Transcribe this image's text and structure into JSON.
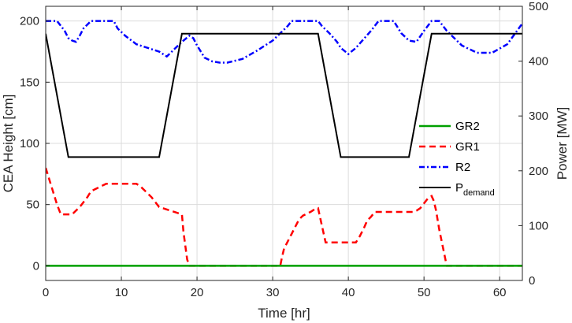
{
  "chart_data": {
    "type": "line",
    "title": "",
    "xlabel": "Time [hr]",
    "ylabel_left": "CEA Height [cm]",
    "ylabel_right": "Power [MW]",
    "xlim": [
      0,
      63
    ],
    "ylim_left": [
      -12,
      212
    ],
    "ylim_right": [
      0,
      500
    ],
    "xticks": [
      0,
      10,
      20,
      30,
      40,
      50,
      60
    ],
    "yticks_left": [
      0,
      50,
      100,
      150,
      200
    ],
    "yticks_right": [
      0,
      100,
      200,
      300,
      400,
      500
    ],
    "grid": true,
    "legend_position": "right",
    "legend": [
      {
        "series": "GR2",
        "label": "GR2",
        "sub": ""
      },
      {
        "series": "GR1",
        "label": "GR1",
        "sub": ""
      },
      {
        "series": "R2",
        "label": "R2",
        "sub": ""
      },
      {
        "series": "P",
        "label": "P",
        "sub": "demand"
      }
    ],
    "series": [
      {
        "name": "GR2",
        "axis": "left",
        "color": "#00a000",
        "style": "solid",
        "x": [
          0,
          63
        ],
        "y": [
          0,
          0
        ]
      },
      {
        "name": "GR1",
        "axis": "left",
        "color": "#ff0000",
        "style": "dashed",
        "x": [
          0,
          0.5,
          1,
          1.5,
          2,
          3.5,
          4,
          4.5,
          5,
          5.5,
          6,
          8,
          10,
          11,
          12,
          12.5,
          13,
          13.5,
          14,
          14.5,
          15,
          18,
          18.2,
          18.5,
          18.7,
          19,
          31,
          31.2,
          31.5,
          32,
          32.5,
          33,
          33.5,
          34,
          35,
          35.5,
          36,
          36.5,
          37,
          40,
          41,
          41.5,
          42,
          42.5,
          43,
          43.5,
          48,
          48.5,
          49,
          49.5,
          50,
          50.5,
          51,
          51.3,
          51.6,
          52,
          52.5,
          53,
          63
        ],
        "y": [
          80,
          70,
          60,
          50,
          42,
          42,
          45,
          48,
          52,
          56,
          61,
          67,
          67,
          67,
          67,
          65,
          62,
          59,
          56,
          52,
          48,
          42,
          28,
          14,
          5,
          0,
          0,
          6,
          14,
          20,
          26,
          32,
          38,
          41,
          44,
          46,
          47,
          33,
          19,
          19,
          19,
          24,
          30,
          37,
          40,
          44,
          44,
          44,
          45,
          47,
          51,
          55,
          57,
          53,
          45,
          30,
          15,
          0,
          0
        ]
      },
      {
        "name": "R2",
        "axis": "left",
        "color": "#0000ff",
        "style": "dashdot",
        "x": [
          0,
          1.5,
          2.5,
          3,
          3.5,
          4,
          4.5,
          5,
          6,
          9,
          9.5,
          10.5,
          12,
          13,
          14,
          15,
          16,
          17,
          18,
          19,
          19.5,
          20,
          21,
          22,
          23,
          24,
          26,
          28,
          30,
          31,
          32,
          32.5,
          33,
          35,
          35.5,
          36,
          36.5,
          37.5,
          38.5,
          39,
          40,
          41,
          42,
          43,
          44,
          45,
          46,
          46.5,
          47,
          47.5,
          48,
          49,
          50,
          51,
          52,
          53,
          55,
          57,
          59,
          61,
          63
        ],
        "y": [
          200,
          200,
          192,
          186,
          184,
          183,
          188,
          194,
          200,
          200,
          194,
          188,
          181,
          179,
          177,
          175,
          171,
          177,
          183,
          188,
          186,
          180,
          170,
          167,
          166,
          166,
          169,
          176,
          184,
          190,
          196,
          200,
          200,
          200,
          200,
          200,
          196,
          190,
          183,
          178,
          173,
          178,
          185,
          192,
          200,
          200,
          200,
          195,
          190,
          187,
          184,
          183,
          192,
          200,
          200,
          192,
          180,
          174,
          174,
          181,
          198
        ]
      },
      {
        "name": "P",
        "axis": "right",
        "color": "#000000",
        "style": "solid",
        "x": [
          0,
          3,
          15,
          18,
          36,
          39,
          48,
          51,
          63
        ],
        "y": [
          450,
          225,
          225,
          450,
          450,
          225,
          225,
          450,
          450
        ]
      }
    ]
  }
}
